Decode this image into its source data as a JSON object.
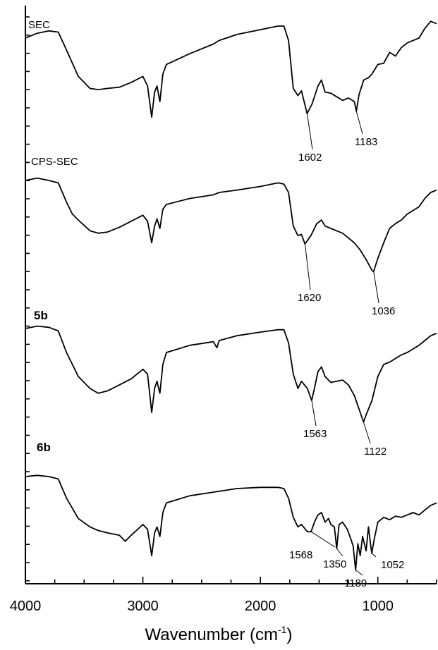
{
  "chart_data": {
    "type": "line",
    "xlabel": "Wavenumber (cm",
    "xlabel_sup": "-1",
    "xlabel_close": ")",
    "xlim": [
      4000,
      500
    ],
    "x_ticks": [
      "4000",
      "3000",
      "2000",
      "1000"
    ],
    "x_tick_values": [
      4000,
      3000,
      2000,
      1000
    ],
    "grid": false,
    "series": [
      {
        "name": "SEC",
        "bold": false,
        "points": [
          [
            4000,
            0.8
          ],
          [
            3900,
            0.84
          ],
          [
            3800,
            0.86
          ],
          [
            3720,
            0.85
          ],
          [
            3650,
            0.7
          ],
          [
            3550,
            0.48
          ],
          [
            3450,
            0.38
          ],
          [
            3380,
            0.37
          ],
          [
            3300,
            0.38
          ],
          [
            3200,
            0.39
          ],
          [
            3100,
            0.43
          ],
          [
            3000,
            0.48
          ],
          [
            2960,
            0.4
          ],
          [
            2925,
            0.14
          ],
          [
            2900,
            0.35
          ],
          [
            2880,
            0.4
          ],
          [
            2855,
            0.27
          ],
          [
            2830,
            0.5
          ],
          [
            2800,
            0.58
          ],
          [
            2600,
            0.67
          ],
          [
            2400,
            0.75
          ],
          [
            2350,
            0.78
          ],
          [
            2200,
            0.83
          ],
          [
            2000,
            0.87
          ],
          [
            1850,
            0.9
          ],
          [
            1800,
            0.9
          ],
          [
            1760,
            0.78
          ],
          [
            1720,
            0.38
          ],
          [
            1680,
            0.32
          ],
          [
            1650,
            0.36
          ],
          [
            1602,
            0.17
          ],
          [
            1560,
            0.25
          ],
          [
            1510,
            0.4
          ],
          [
            1480,
            0.45
          ],
          [
            1450,
            0.35
          ],
          [
            1400,
            0.34
          ],
          [
            1350,
            0.31
          ],
          [
            1300,
            0.28
          ],
          [
            1250,
            0.3
          ],
          [
            1200,
            0.27
          ],
          [
            1183,
            0.19
          ],
          [
            1160,
            0.33
          ],
          [
            1120,
            0.45
          ],
          [
            1080,
            0.47
          ],
          [
            1050,
            0.5
          ],
          [
            1000,
            0.58
          ],
          [
            950,
            0.59
          ],
          [
            900,
            0.68
          ],
          [
            850,
            0.65
          ],
          [
            800,
            0.72
          ],
          [
            750,
            0.76
          ],
          [
            700,
            0.78
          ],
          [
            650,
            0.8
          ],
          [
            600,
            0.88
          ],
          [
            550,
            0.94
          ],
          [
            500,
            0.92
          ]
        ],
        "annotations": [
          {
            "label": "1602",
            "x": 1602
          },
          {
            "label": "1183",
            "x": 1183
          }
        ]
      },
      {
        "name": "CPS-SEC",
        "bold": false,
        "points": [
          [
            4000,
            0.8
          ],
          [
            3900,
            0.82
          ],
          [
            3800,
            0.8
          ],
          [
            3720,
            0.78
          ],
          [
            3650,
            0.62
          ],
          [
            3600,
            0.52
          ],
          [
            3550,
            0.47
          ],
          [
            3450,
            0.38
          ],
          [
            3380,
            0.36
          ],
          [
            3300,
            0.37
          ],
          [
            3200,
            0.41
          ],
          [
            3100,
            0.46
          ],
          [
            3000,
            0.51
          ],
          [
            2960,
            0.46
          ],
          [
            2925,
            0.28
          ],
          [
            2900,
            0.42
          ],
          [
            2880,
            0.48
          ],
          [
            2855,
            0.4
          ],
          [
            2830,
            0.56
          ],
          [
            2800,
            0.6
          ],
          [
            2600,
            0.65
          ],
          [
            2400,
            0.68
          ],
          [
            2350,
            0.7
          ],
          [
            2200,
            0.72
          ],
          [
            2000,
            0.75
          ],
          [
            1850,
            0.78
          ],
          [
            1800,
            0.77
          ],
          [
            1760,
            0.7
          ],
          [
            1720,
            0.42
          ],
          [
            1680,
            0.34
          ],
          [
            1650,
            0.35
          ],
          [
            1620,
            0.27
          ],
          [
            1570,
            0.34
          ],
          [
            1520,
            0.44
          ],
          [
            1480,
            0.47
          ],
          [
            1450,
            0.42
          ],
          [
            1400,
            0.4
          ],
          [
            1350,
            0.38
          ],
          [
            1300,
            0.36
          ],
          [
            1250,
            0.32
          ],
          [
            1200,
            0.28
          ],
          [
            1150,
            0.22
          ],
          [
            1100,
            0.14
          ],
          [
            1050,
            0.05
          ],
          [
            1036,
            0.04
          ],
          [
            1000,
            0.15
          ],
          [
            950,
            0.28
          ],
          [
            900,
            0.4
          ],
          [
            850,
            0.44
          ],
          [
            800,
            0.47
          ],
          [
            750,
            0.52
          ],
          [
            700,
            0.55
          ],
          [
            650,
            0.58
          ],
          [
            600,
            0.65
          ],
          [
            550,
            0.7
          ],
          [
            500,
            0.72
          ]
        ],
        "annotations": [
          {
            "label": "1620",
            "x": 1620
          },
          {
            "label": "1036",
            "x": 1036
          }
        ]
      },
      {
        "name": "5b",
        "bold": true,
        "points": [
          [
            4000,
            0.8
          ],
          [
            3900,
            0.82
          ],
          [
            3800,
            0.81
          ],
          [
            3720,
            0.78
          ],
          [
            3650,
            0.6
          ],
          [
            3550,
            0.4
          ],
          [
            3450,
            0.3
          ],
          [
            3380,
            0.26
          ],
          [
            3300,
            0.28
          ],
          [
            3200,
            0.33
          ],
          [
            3100,
            0.38
          ],
          [
            3000,
            0.46
          ],
          [
            2960,
            0.42
          ],
          [
            2925,
            0.1
          ],
          [
            2900,
            0.3
          ],
          [
            2880,
            0.36
          ],
          [
            2855,
            0.26
          ],
          [
            2830,
            0.5
          ],
          [
            2800,
            0.6
          ],
          [
            2600,
            0.66
          ],
          [
            2400,
            0.69
          ],
          [
            2370,
            0.64
          ],
          [
            2350,
            0.7
          ],
          [
            2200,
            0.74
          ],
          [
            2000,
            0.77
          ],
          [
            1850,
            0.79
          ],
          [
            1800,
            0.79
          ],
          [
            1760,
            0.68
          ],
          [
            1720,
            0.42
          ],
          [
            1680,
            0.3
          ],
          [
            1650,
            0.36
          ],
          [
            1600,
            0.3
          ],
          [
            1563,
            0.2
          ],
          [
            1540,
            0.3
          ],
          [
            1510,
            0.44
          ],
          [
            1480,
            0.48
          ],
          [
            1450,
            0.4
          ],
          [
            1400,
            0.35
          ],
          [
            1350,
            0.36
          ],
          [
            1300,
            0.37
          ],
          [
            1250,
            0.33
          ],
          [
            1200,
            0.24
          ],
          [
            1150,
            0.1
          ],
          [
            1122,
            0.02
          ],
          [
            1100,
            0.08
          ],
          [
            1050,
            0.2
          ],
          [
            1000,
            0.4
          ],
          [
            950,
            0.5
          ],
          [
            900,
            0.52
          ],
          [
            850,
            0.55
          ],
          [
            800,
            0.58
          ],
          [
            750,
            0.6
          ],
          [
            700,
            0.63
          ],
          [
            650,
            0.66
          ],
          [
            600,
            0.7
          ],
          [
            550,
            0.74
          ],
          [
            500,
            0.76
          ]
        ],
        "annotations": [
          {
            "label": "1563",
            "x": 1563
          },
          {
            "label": "1122",
            "x": 1122
          }
        ]
      },
      {
        "name": "6b",
        "bold": true,
        "points": [
          [
            4000,
            0.8
          ],
          [
            3900,
            0.81
          ],
          [
            3800,
            0.8
          ],
          [
            3720,
            0.78
          ],
          [
            3650,
            0.62
          ],
          [
            3550,
            0.45
          ],
          [
            3450,
            0.38
          ],
          [
            3380,
            0.35
          ],
          [
            3300,
            0.33
          ],
          [
            3200,
            0.31
          ],
          [
            3150,
            0.26
          ],
          [
            3100,
            0.31
          ],
          [
            3000,
            0.4
          ],
          [
            2960,
            0.36
          ],
          [
            2925,
            0.14
          ],
          [
            2900,
            0.33
          ],
          [
            2880,
            0.38
          ],
          [
            2855,
            0.3
          ],
          [
            2830,
            0.5
          ],
          [
            2800,
            0.58
          ],
          [
            2600,
            0.64
          ],
          [
            2400,
            0.67
          ],
          [
            2200,
            0.7
          ],
          [
            2000,
            0.71
          ],
          [
            1850,
            0.71
          ],
          [
            1800,
            0.7
          ],
          [
            1760,
            0.62
          ],
          [
            1720,
            0.46
          ],
          [
            1680,
            0.38
          ],
          [
            1650,
            0.4
          ],
          [
            1600,
            0.34
          ],
          [
            1568,
            0.34
          ],
          [
            1540,
            0.42
          ],
          [
            1510,
            0.48
          ],
          [
            1480,
            0.5
          ],
          [
            1450,
            0.42
          ],
          [
            1420,
            0.45
          ],
          [
            1400,
            0.4
          ],
          [
            1370,
            0.38
          ],
          [
            1350,
            0.2
          ],
          [
            1330,
            0.4
          ],
          [
            1300,
            0.42
          ],
          [
            1260,
            0.36
          ],
          [
            1230,
            0.28
          ],
          [
            1210,
            0.22
          ],
          [
            1189,
            0.02
          ],
          [
            1170,
            0.24
          ],
          [
            1150,
            0.14
          ],
          [
            1130,
            0.3
          ],
          [
            1100,
            0.18
          ],
          [
            1080,
            0.38
          ],
          [
            1060,
            0.22
          ],
          [
            1052,
            0.16
          ],
          [
            1030,
            0.28
          ],
          [
            1000,
            0.42
          ],
          [
            950,
            0.46
          ],
          [
            900,
            0.44
          ],
          [
            850,
            0.47
          ],
          [
            800,
            0.46
          ],
          [
            750,
            0.48
          ],
          [
            700,
            0.5
          ],
          [
            650,
            0.48
          ],
          [
            600,
            0.52
          ],
          [
            550,
            0.56
          ],
          [
            500,
            0.58
          ]
        ],
        "annotations": [
          {
            "label": "1568",
            "x": 1568
          },
          {
            "label": "1350",
            "x": 1350
          },
          {
            "label": "1189",
            "x": 1189
          },
          {
            "label": "1052",
            "x": 1052
          }
        ]
      }
    ]
  }
}
